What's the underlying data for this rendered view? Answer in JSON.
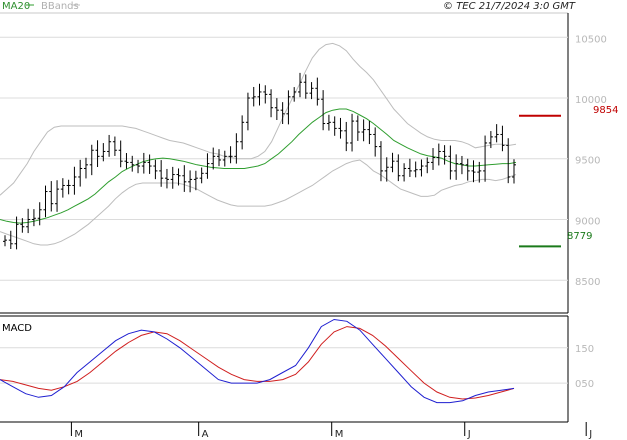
{
  "header": {
    "legend_ma": "MA20",
    "legend_bb": "BBands",
    "copyright": "© TEC 21/7/2024 3:0 GMT"
  },
  "levels": {
    "resistance_label": "9854",
    "support_label": "8779",
    "resistance": 9854,
    "support": 8779,
    "resistance_color": "#c00000",
    "support_color": "#1a7a1a"
  },
  "macd_panel": {
    "title": "MACD",
    "ticks": [
      {
        "label": "150",
        "value": 150
      },
      {
        "label": "050",
        "value": 50
      }
    ]
  },
  "colors": {
    "price_bars": "#000000",
    "ma20": "#2f9e2f",
    "bbands": "#bdbdbd",
    "macd": "#1f1fd0",
    "signal": "#d01f1f",
    "grid": "#dcdcdc"
  },
  "chart_data": [
    {
      "type": "ohlc",
      "yticks": [
        {
          "label": "10500",
          "value": 10500
        },
        {
          "label": "10000",
          "value": 10000
        },
        {
          "label": "9500",
          "value": 9500
        },
        {
          "label": "9000",
          "value": 9000
        },
        {
          "label": "8500",
          "value": 8500
        }
      ],
      "ylim": [
        8230,
        10700
      ],
      "xticks": [
        {
          "label": "M",
          "index": 12
        },
        {
          "label": "A",
          "index": 34
        },
        {
          "label": "M",
          "index": 57
        },
        {
          "label": "J",
          "index": 80
        },
        {
          "label": "J",
          "index": 101
        }
      ],
      "series": [
        {
          "legend": "MA20",
          "values": [
            9000,
            8985,
            8975,
            8970,
            8975,
            8985,
            9000,
            9015,
            9035,
            9055,
            9080,
            9110,
            9140,
            9170,
            9210,
            9260,
            9310,
            9350,
            9395,
            9425,
            9450,
            9475,
            9490,
            9500,
            9505,
            9500,
            9490,
            9480,
            9465,
            9450,
            9440,
            9430,
            9425,
            9420,
            9420,
            9420,
            9420,
            9430,
            9440,
            9460,
            9500,
            9540,
            9590,
            9640,
            9700,
            9750,
            9800,
            9840,
            9880,
            9900,
            9910,
            9910,
            9890,
            9860,
            9830,
            9790,
            9745,
            9700,
            9650,
            9620,
            9590,
            9565,
            9540,
            9525,
            9515,
            9505,
            9480,
            9460,
            9450,
            9440,
            9440,
            9445,
            9450,
            9455,
            9460,
            9460,
            9470
          ]
        },
        {
          "legend": "BBands upper",
          "values": [
            9200,
            9250,
            9300,
            9380,
            9460,
            9560,
            9640,
            9720,
            9760,
            9770,
            9770,
            9770,
            9770,
            9770,
            9770,
            9770,
            9770,
            9770,
            9770,
            9760,
            9750,
            9730,
            9710,
            9690,
            9670,
            9650,
            9640,
            9630,
            9610,
            9590,
            9570,
            9550,
            9540,
            9520,
            9510,
            9500,
            9500,
            9500,
            9520,
            9560,
            9640,
            9760,
            9880,
            9990,
            10100,
            10220,
            10330,
            10400,
            10440,
            10450,
            10430,
            10390,
            10320,
            10260,
            10210,
            10150,
            10070,
            9990,
            9910,
            9850,
            9790,
            9750,
            9710,
            9680,
            9660,
            9650,
            9650,
            9650,
            9640,
            9620,
            9590,
            9600,
            9610,
            9620,
            9620,
            9610,
            9620
          ]
        },
        {
          "legend": "BBands lower",
          "values": [
            8900,
            8880,
            8860,
            8840,
            8820,
            8800,
            8790,
            8790,
            8800,
            8820,
            8850,
            8880,
            8920,
            8960,
            9010,
            9060,
            9110,
            9170,
            9220,
            9260,
            9290,
            9300,
            9300,
            9300,
            9300,
            9300,
            9300,
            9290,
            9270,
            9250,
            9220,
            9190,
            9160,
            9140,
            9120,
            9110,
            9110,
            9110,
            9110,
            9110,
            9120,
            9140,
            9160,
            9190,
            9220,
            9250,
            9280,
            9320,
            9360,
            9400,
            9430,
            9460,
            9480,
            9490,
            9450,
            9400,
            9370,
            9330,
            9290,
            9250,
            9230,
            9210,
            9190,
            9190,
            9200,
            9240,
            9260,
            9280,
            9290,
            9310,
            9320,
            9330,
            9330,
            9320,
            9330,
            9350,
            9370
          ]
        },
        {
          "legend": "Price",
          "open": [
            8820,
            8830,
            8800,
            8960,
            8940,
            9000,
            9010,
            9080,
            9230,
            9130,
            9250,
            9280,
            9280,
            9350,
            9420,
            9450,
            9570,
            9520,
            9560,
            9640,
            9570,
            9480,
            9470,
            9450,
            9440,
            9470,
            9440,
            9400,
            9340,
            9330,
            9370,
            9360,
            9310,
            9330,
            9340,
            9380,
            9460,
            9520,
            9490,
            9520,
            9520,
            9640,
            9800,
            10000,
            10010,
            10050,
            10030,
            9920,
            9900,
            9870,
            10010,
            10050,
            10130,
            10040,
            10080,
            9990,
            9790,
            9800,
            9750,
            9730,
            9630,
            9810,
            9720,
            9740,
            9700,
            9600,
            9400,
            9430,
            9480,
            9360,
            9420,
            9400,
            9410,
            9440,
            9470,
            9510,
            9560,
            9520,
            9400,
            9460,
            9450,
            9400,
            9390,
            9400,
            9630,
            9680,
            9700,
            9610,
            9350
          ]
        },
        {
          "legend": "Price close",
          "close": [
            8830,
            8800,
            8960,
            8940,
            9000,
            9010,
            9080,
            9230,
            9130,
            9250,
            9280,
            9280,
            9350,
            9420,
            9450,
            9570,
            9520,
            9560,
            9640,
            9570,
            9480,
            9470,
            9450,
            9440,
            9470,
            9440,
            9400,
            9340,
            9330,
            9370,
            9360,
            9310,
            9330,
            9340,
            9380,
            9460,
            9520,
            9490,
            9520,
            9520,
            9640,
            9800,
            10000,
            10010,
            10050,
            10030,
            9920,
            9900,
            9870,
            10010,
            10050,
            10130,
            10040,
            10080,
            9990,
            9790,
            9800,
            9750,
            9730,
            9630,
            9810,
            9720,
            9740,
            9700,
            9600,
            9400,
            9430,
            9480,
            9360,
            9420,
            9400,
            9410,
            9440,
            9470,
            9510,
            9560,
            9520,
            9400,
            9460,
            9450,
            9400,
            9390,
            9400,
            9630,
            9680,
            9700,
            9610,
            9350,
            9450
          ]
        }
      ]
    },
    {
      "type": "line",
      "title": "MACD",
      "series": [
        {
          "legend": "MACD",
          "values": [
            60,
            40,
            20,
            10,
            15,
            40,
            80,
            110,
            140,
            170,
            190,
            200,
            195,
            175,
            150,
            120,
            90,
            60,
            50,
            50,
            50,
            60,
            80,
            100,
            150,
            210,
            230,
            225,
            200,
            160,
            120,
            80,
            40,
            10,
            -5,
            -5,
            0,
            15,
            25,
            30,
            35
          ]
        },
        {
          "legend": "Signal",
          "values": [
            60,
            55,
            45,
            35,
            30,
            40,
            55,
            80,
            110,
            140,
            165,
            185,
            195,
            190,
            170,
            145,
            120,
            95,
            75,
            60,
            55,
            55,
            60,
            75,
            110,
            160,
            195,
            210,
            205,
            185,
            155,
            120,
            85,
            50,
            25,
            10,
            5,
            8,
            15,
            25,
            35
          ]
        }
      ]
    }
  ]
}
